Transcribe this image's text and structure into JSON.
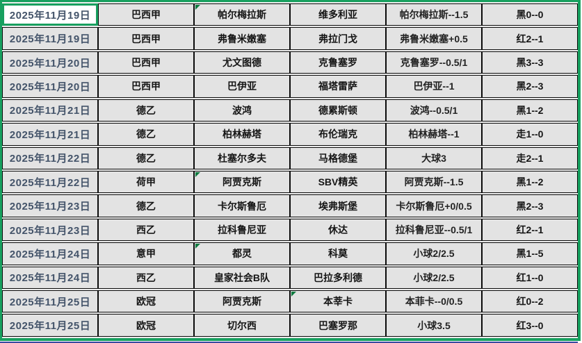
{
  "app": {
    "type": "spreadsheet-selection",
    "selection_border_color": "#18a05f",
    "flag_triangle_color": "#0c7a3e",
    "cell_background": "#e3e3e3",
    "active_cell_background": "#ffffff",
    "date_text_color": "#44546a",
    "text_color": "#151515"
  },
  "table": {
    "columns": [
      "date",
      "league",
      "home",
      "away",
      "handicap",
      "result"
    ],
    "rows": [
      {
        "date": "2025年11月19日",
        "league": "巴西甲",
        "home": "帕尔梅拉斯",
        "away": "维多利亚",
        "handicap": "帕尔梅拉斯--1.5",
        "result": "黑0--0",
        "marker": "home",
        "active": "date"
      },
      {
        "date": "2025年11月19日",
        "league": "巴西甲",
        "home": "弗鲁米嫩塞",
        "away": "弗拉门戈",
        "handicap": "弗鲁米嫩塞+0.5",
        "result": "红2--1"
      },
      {
        "date": "2025年11月20日",
        "league": "巴西甲",
        "home": "尤文图德",
        "away": "克鲁塞罗",
        "handicap": "克鲁塞罗--0.5/1",
        "result": "黑3--3"
      },
      {
        "date": "2025年11月20日",
        "league": "巴西甲",
        "home": "巴伊亚",
        "away": "福塔雷萨",
        "handicap": "巴伊亚--1",
        "result": "黑2--3"
      },
      {
        "date": "2025年11月21日",
        "league": "德乙",
        "home": "波鸿",
        "away": "德累斯顿",
        "handicap": "波鸿--0.5/1",
        "result": "黑1--2"
      },
      {
        "date": "2025年11月21日",
        "league": "德乙",
        "home": "柏林赫塔",
        "away": "布伦瑞克",
        "handicap": "柏林赫塔--1",
        "result": "走1--0"
      },
      {
        "date": "2025年11月22日",
        "league": "德乙",
        "home": "杜塞尔多夫",
        "away": "马格德堡",
        "handicap": "大球3",
        "result": "走2--1"
      },
      {
        "date": "2025年11月22日",
        "league": "荷甲",
        "home": "阿贾克斯",
        "away": "SBV精英",
        "handicap": "阿贾克斯--1.5",
        "result": "黑1--2",
        "marker": "home"
      },
      {
        "date": "2025年11月23日",
        "league": "德乙",
        "home": "卡尔斯鲁厄",
        "away": "埃弗斯堡",
        "handicap": "卡尔斯鲁厄+0/0.5",
        "result": "黑2--3"
      },
      {
        "date": "2025年11月23日",
        "league": "西乙",
        "home": "拉科鲁尼亚",
        "away": "休达",
        "handicap": "拉科鲁尼亚--0.5/1",
        "result": "红2--1"
      },
      {
        "date": "2025年11月24日",
        "league": "意甲",
        "home": "都灵",
        "away": "科莫",
        "handicap": "小球2/2.5",
        "result": "黑1--5",
        "marker": "home"
      },
      {
        "date": "2025年11月24日",
        "league": "西乙",
        "home": "皇家社会B队",
        "away": "巴拉多利德",
        "handicap": "小球2/2.5",
        "result": "红1--0"
      },
      {
        "date": "2025年11月25日",
        "league": "欧冠",
        "home": "阿贾克斯",
        "away": "本莘卡",
        "handicap": "本菲卡--0/0.5",
        "result": "红0--2",
        "marker": "away"
      },
      {
        "date": "2025年11月25日",
        "league": "欧冠",
        "home": "切尔西",
        "away": "巴塞罗那",
        "handicap": "小球3.5",
        "result": "红3--0"
      }
    ]
  }
}
